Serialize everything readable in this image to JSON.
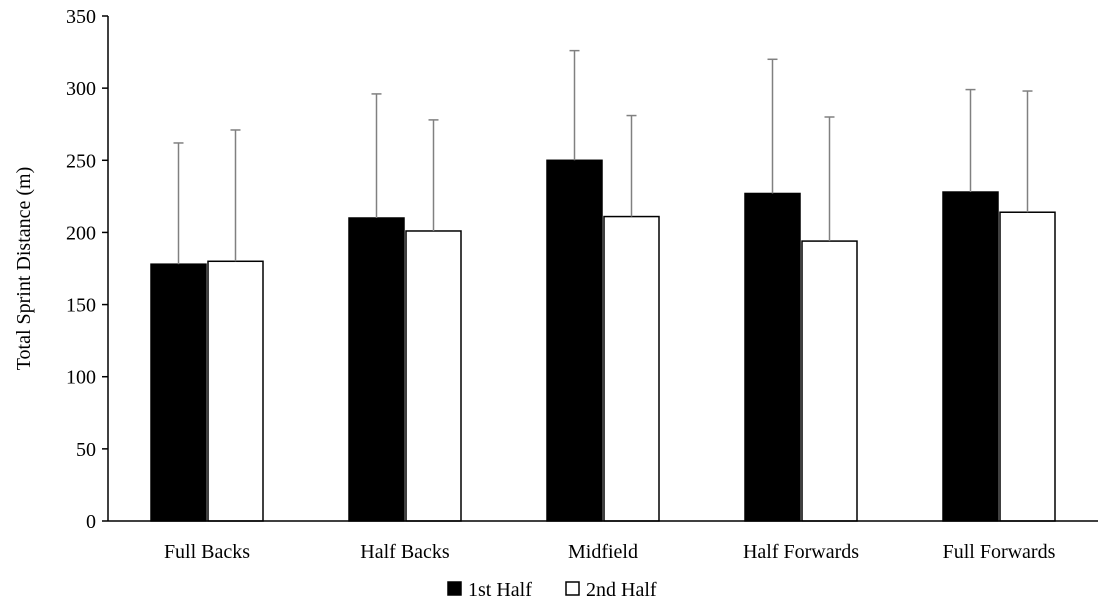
{
  "chart_data": {
    "type": "bar",
    "title": "",
    "xlabel": "",
    "ylabel": "Total Sprint Distance (m)",
    "ylim": [
      0,
      350
    ],
    "yticks": [
      0,
      50,
      100,
      150,
      200,
      250,
      300,
      350
    ],
    "categories": [
      "Full Backs",
      "Half Backs",
      "Midfield",
      "Half Forwards",
      "Full Forwards"
    ],
    "series": [
      {
        "name": "1st Half",
        "color": "#000000",
        "values": [
          178,
          210,
          250,
          227,
          228
        ],
        "error_upper": [
          84,
          86,
          76,
          93,
          71
        ]
      },
      {
        "name": "2nd Half",
        "color": "#ffffff",
        "values": [
          180,
          201,
          211,
          194,
          214
        ],
        "error_upper": [
          91,
          77,
          70,
          86,
          84
        ]
      }
    ],
    "grid": false,
    "legend_position": "bottom-center",
    "error_bar_color": "#808080"
  }
}
